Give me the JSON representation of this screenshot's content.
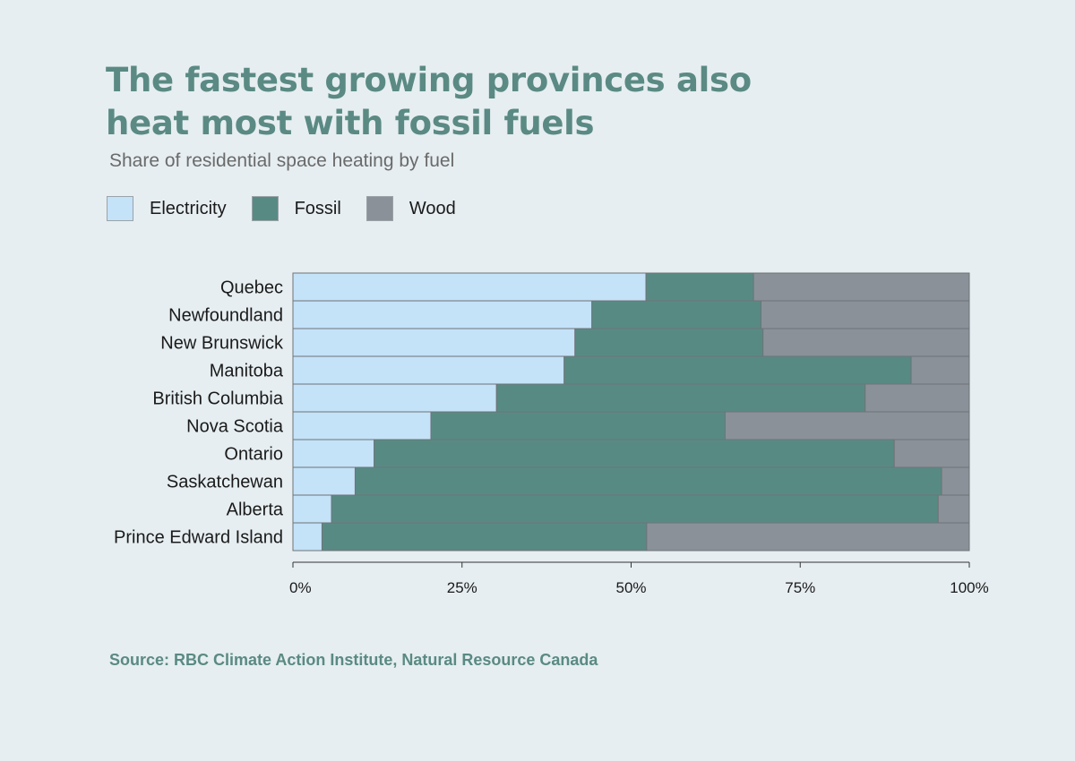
{
  "title_line1": "The fastest growing provinces also",
  "title_line2": "heat most with fossil fuels",
  "subtitle": "Share of residential space heating by fuel",
  "source": "Source: RBC Climate Action Institute, Natural Resource Canada",
  "colors": {
    "Electricity": "#c4e2f8",
    "Fossil": "#588a84",
    "Wood": "#8a9198",
    "background": "#e6eef1"
  },
  "legend": [
    {
      "label": "Electricity",
      "color": "#c4e2f8"
    },
    {
      "label": "Fossil",
      "color": "#588a84"
    },
    {
      "label": "Wood",
      "color": "#8a9198"
    }
  ],
  "chart_data": {
    "type": "bar",
    "orientation": "horizontal",
    "stacked": true,
    "title": "The fastest growing provinces also heat most with fossil fuels",
    "subtitle": "Share of residential space heating by fuel",
    "categories": [
      "Quebec",
      "Newfoundland",
      "New Brunswick",
      "Manitoba",
      "British Columbia",
      "Nova Scotia",
      "Ontario",
      "Saskatchewan",
      "Alberta",
      "Prince Edward Island"
    ],
    "series": [
      {
        "name": "Electricity",
        "values": [
          52.2,
          44.2,
          41.7,
          40.1,
          30.1,
          20.4,
          12.0,
          9.2,
          5.7,
          4.3
        ]
      },
      {
        "name": "Fossil",
        "values": [
          15.9,
          25.0,
          27.8,
          51.3,
          54.5,
          43.5,
          76.9,
          86.7,
          89.7,
          48.0
        ]
      },
      {
        "name": "Wood",
        "values": [
          31.9,
          30.8,
          30.5,
          8.6,
          15.4,
          36.1,
          11.1,
          4.1,
          4.6,
          47.7
        ]
      }
    ],
    "xlim": [
      0,
      100
    ],
    "xticks": [
      "0%",
      "25%",
      "50%",
      "75%",
      "100%"
    ],
    "xtick_values": [
      0,
      25,
      50,
      75,
      100
    ],
    "xlabel": "",
    "ylabel": "",
    "grid": false,
    "legend_position": "top-left"
  }
}
